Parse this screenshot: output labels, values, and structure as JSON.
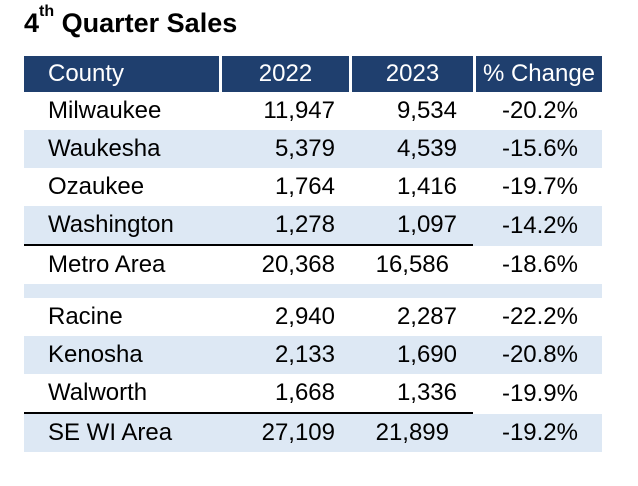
{
  "title": {
    "sup": "th",
    "main": " Quarter Sales",
    "num": "4"
  },
  "columns": [
    "County",
    "2022",
    "2023",
    "% Change"
  ],
  "rows": [
    {
      "county": "Milwaukee",
      "y2022": "11,947",
      "y2023": "9,534",
      "change": "-20.2%"
    },
    {
      "county": "Waukesha",
      "y2022": "5,379",
      "y2023": "4,539",
      "change": "-15.6%"
    },
    {
      "county": "Ozaukee",
      "y2022": "1,764",
      "y2023": "1,416",
      "change": "-19.7%"
    },
    {
      "county": "Washington",
      "y2022": "1,278",
      "y2023": "1,097",
      "change": "-14.2%"
    },
    {
      "county": "Metro Area",
      "y2022": "20,368",
      "y2023": "16,586",
      "change": "-18.6%"
    },
    {
      "county": "Racine",
      "y2022": "2,940",
      "y2023": "2,287",
      "change": "-22.2%"
    },
    {
      "county": "Kenosha",
      "y2022": "2,133",
      "y2023": "1,690",
      "change": "-20.8%"
    },
    {
      "county": "Walworth",
      "y2022": "1,668",
      "y2023": "1,336",
      "change": "-19.9%"
    },
    {
      "county": "SE WI Area",
      "y2022": "27,109",
      "y2023": "21,899",
      "change": "-19.2%"
    }
  ],
  "colors": {
    "header_bg": "#1f3f6e",
    "stripe": "#dde8f4"
  }
}
